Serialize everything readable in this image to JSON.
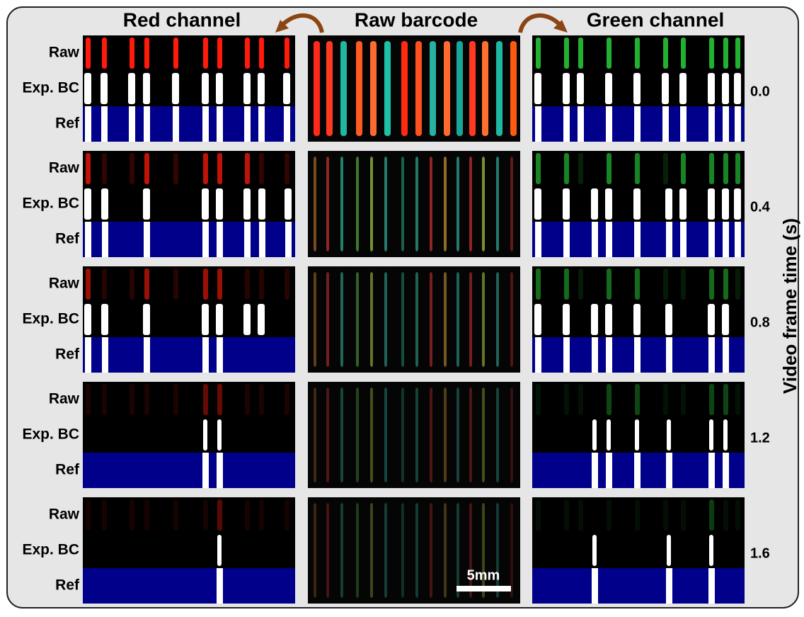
{
  "header": {
    "titles": [
      "Red channel",
      "Raw barcode",
      "Green channel"
    ]
  },
  "row_labels": [
    "Raw",
    "Exp. BC",
    "Ref"
  ],
  "frames": [
    "0.0",
    "0.4",
    "0.8",
    "1.2",
    "1.6"
  ],
  "axis_label": "Video frame time (s)",
  "scale_bar": "5mm"
}
